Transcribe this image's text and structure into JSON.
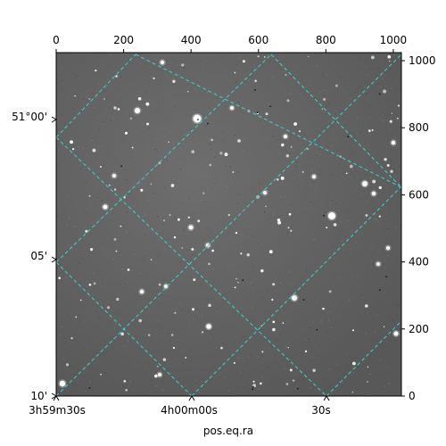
{
  "image": {
    "type": "astronomical-sky-image",
    "colormap": "grayscale",
    "overlay_grid_color": "#3fd0d0"
  },
  "axes": {
    "pixel_x_ticks": [
      "0",
      "200",
      "400",
      "600",
      "800",
      "1000"
    ],
    "pixel_y_ticks": [
      "0",
      "200",
      "400",
      "600",
      "800",
      "1000"
    ],
    "ra_ticks": [
      "3h59m30s",
      "4h00m00s",
      "30s"
    ],
    "dec_ticks": [
      "51°00'",
      "05'",
      "10'"
    ],
    "xlabel": "pos.eq.ra"
  }
}
